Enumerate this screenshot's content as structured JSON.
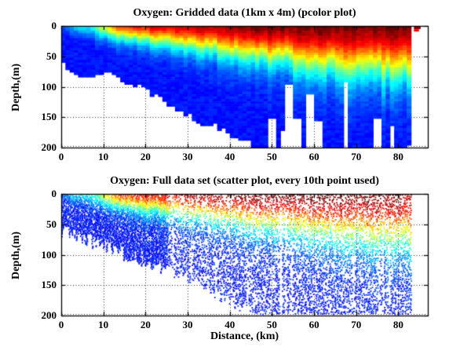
{
  "figure": {
    "background": "#ffffff",
    "border_color": "#000000",
    "grid_style": "dotted"
  },
  "chart_data": [
    {
      "type": "heatmap",
      "title": "Oxygen: Gridded data (1km x 4m) (pcolor plot)",
      "xlabel": "",
      "ylabel": "Depth,(m)",
      "xlim": [
        0,
        87
      ],
      "ylim": [
        0,
        200
      ],
      "y_axis_reversed": true,
      "xticks": [
        0,
        10,
        20,
        30,
        40,
        50,
        60,
        70,
        80
      ],
      "yticks": [
        0,
        50,
        100,
        150,
        200
      ],
      "grid": "dotted",
      "legend": "none",
      "colormap": "jet",
      "cell_size": {
        "dx_km": 1,
        "dz_m": 4
      },
      "data_extent_km": [
        0,
        83
      ],
      "isolated_surface_cell_km": 84.5,
      "field_model": {
        "comment": "oxygen colour value (0=dark blue .. 1=dark red, jet) vs distance/depth, read off the image",
        "surface_value_norm": [
          [
            0,
            0.18
          ],
          [
            3,
            0.35
          ],
          [
            6,
            0.38
          ],
          [
            8,
            0.45
          ],
          [
            10,
            0.62
          ],
          [
            12,
            0.75
          ],
          [
            15,
            0.84
          ],
          [
            20,
            0.89
          ],
          [
            25,
            0.92
          ],
          [
            30,
            0.95
          ],
          [
            40,
            1.0
          ],
          [
            55,
            1.03
          ],
          [
            70,
            1.03
          ],
          [
            87,
            1.0
          ]
        ],
        "half_value_depth_m": [
          [
            0,
            6
          ],
          [
            10,
            12
          ],
          [
            20,
            19
          ],
          [
            30,
            26
          ],
          [
            40,
            34
          ],
          [
            50,
            42
          ],
          [
            60,
            50
          ],
          [
            70,
            56
          ],
          [
            80,
            62
          ],
          [
            87,
            64
          ]
        ],
        "deep_value_norm": 0.14,
        "bottom_depth_m": [
          [
            0,
            52
          ],
          [
            3,
            62
          ],
          [
            6,
            70
          ],
          [
            10,
            78
          ],
          [
            14,
            90
          ],
          [
            18,
            100
          ],
          [
            22,
            110
          ],
          [
            26,
            122
          ],
          [
            30,
            134
          ],
          [
            34,
            148
          ],
          [
            38,
            162
          ],
          [
            42,
            178
          ],
          [
            46,
            196
          ],
          [
            48,
            200
          ],
          [
            87,
            200
          ]
        ],
        "missing_columns": [
          {
            "x_km": 50,
            "below_m": 150
          },
          {
            "x_km": 52.5,
            "below_m": 170
          },
          {
            "x_km": 54,
            "below_m": 95
          },
          {
            "x_km": 56,
            "below_m": 150
          },
          {
            "x_km": 59,
            "below_m": 110
          },
          {
            "x_km": 61,
            "below_m": 155
          },
          {
            "x_km": 67.5,
            "below_m": 90
          },
          {
            "x_km": 75,
            "below_m": 150
          },
          {
            "x_km": 78.5,
            "below_m": 165
          }
        ]
      }
    },
    {
      "type": "scatter",
      "title": "Oxygen: Full data set (scatter plot, every 10th point used)",
      "xlabel": "Distance, (km)",
      "ylabel": "Depth,(m)",
      "xlim": [
        0,
        87
      ],
      "ylim": [
        0,
        200
      ],
      "y_axis_reversed": true,
      "xticks": [
        0,
        10,
        20,
        30,
        40,
        50,
        60,
        70,
        80
      ],
      "yticks": [
        0,
        50,
        100,
        150,
        200
      ],
      "grid": "dotted",
      "legend": "none",
      "colormap": "jet",
      "marker_px": 2,
      "data_extent_km": [
        0,
        83
      ],
      "field_same_as_pcolor": true
    }
  ]
}
